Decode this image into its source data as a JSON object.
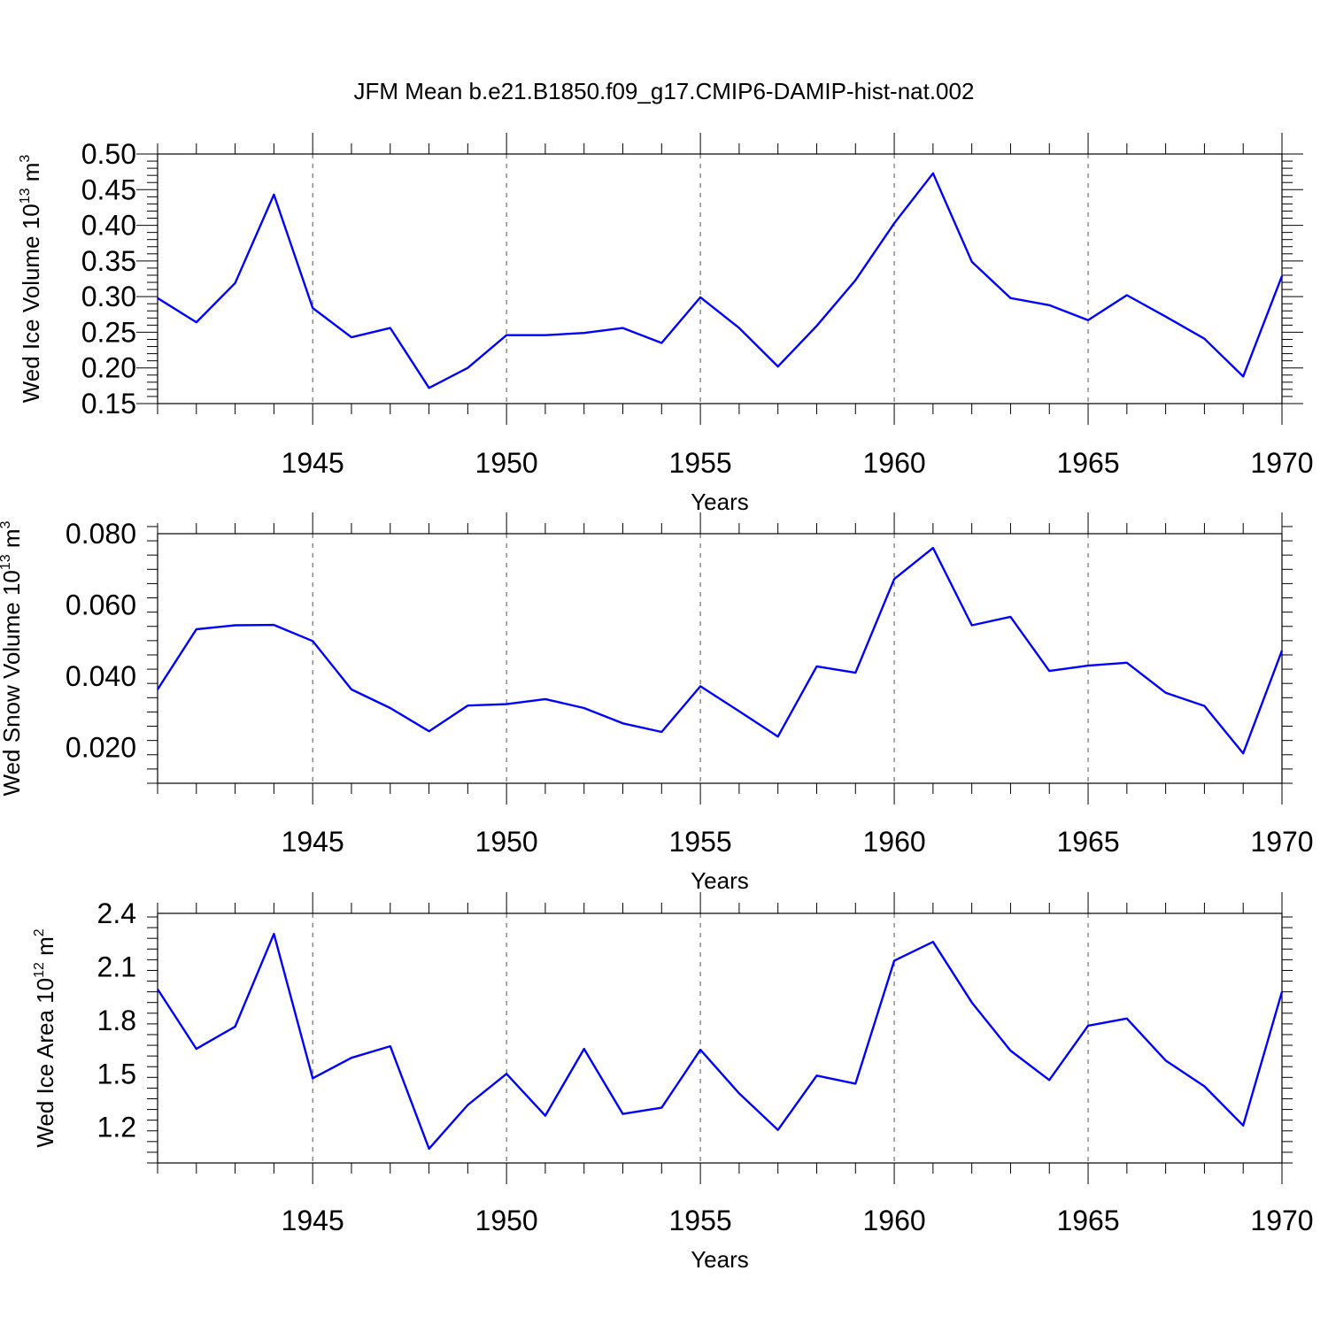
{
  "title": "JFM Mean b.e21.B1850.f09_g17.CMIP6-DAMIP-hist-nat.002",
  "colors": {
    "line": "#0000ff",
    "axis": "#000000",
    "grid": "#555555"
  },
  "chart_data": [
    {
      "type": "line",
      "ylabel": "Wed Ice Volume 10",
      "ylabel_sup": "13",
      "ylabel_unit": "m",
      "ylabel_unit_sup": "3",
      "xlabel": "Years",
      "xlim": [
        1941,
        1970
      ],
      "ylim": [
        0.15,
        0.5
      ],
      "xticks": [
        1945,
        1950,
        1955,
        1960,
        1965,
        1970
      ],
      "xtick_labels": [
        "1945",
        "1950",
        "1955",
        "1960",
        "1965",
        "1970"
      ],
      "yticks": [
        0.15,
        0.2,
        0.25,
        0.3,
        0.35,
        0.4,
        0.45,
        0.5
      ],
      "ytick_labels": [
        "0.15",
        "0.20",
        "0.25",
        "0.30",
        "0.35",
        "0.40",
        "0.45",
        "0.50"
      ],
      "grid": "dashed vertical at labeled years",
      "x": [
        1941,
        1942,
        1943,
        1944,
        1945,
        1946,
        1947,
        1948,
        1949,
        1950,
        1951,
        1952,
        1953,
        1954,
        1955,
        1956,
        1957,
        1958,
        1959,
        1960,
        1961,
        1962,
        1963,
        1964,
        1965,
        1966,
        1967,
        1968,
        1969,
        1970
      ],
      "values": [
        0.298,
        0.264,
        0.319,
        0.443,
        0.284,
        0.243,
        0.256,
        0.172,
        0.2,
        0.246,
        0.246,
        0.249,
        0.256,
        0.235,
        0.299,
        0.256,
        0.202,
        0.259,
        0.323,
        0.403,
        0.473,
        0.349,
        0.298,
        0.288,
        0.267,
        0.302,
        0.272,
        0.241,
        0.188,
        0.329
      ]
    },
    {
      "type": "line",
      "ylabel": "Wed Snow Volume 10",
      "ylabel_sup": "13",
      "ylabel_unit": "m",
      "ylabel_unit_sup": "3",
      "xlabel": "Years",
      "xlim": [
        1941,
        1970
      ],
      "ylim": [
        0.01,
        0.08
      ],
      "xticks": [
        1945,
        1950,
        1955,
        1960,
        1965,
        1970
      ],
      "xtick_labels": [
        "1945",
        "1950",
        "1955",
        "1960",
        "1965",
        "1970"
      ],
      "yticks": [
        0.02,
        0.04,
        0.06,
        0.08
      ],
      "ytick_labels": [
        "0.020",
        "0.040",
        "0.060",
        "0.080"
      ],
      "grid": "dashed vertical at labeled years",
      "x": [
        1941,
        1942,
        1943,
        1944,
        1945,
        1946,
        1947,
        1948,
        1949,
        1950,
        1951,
        1952,
        1953,
        1954,
        1955,
        1956,
        1957,
        1958,
        1959,
        1960,
        1961,
        1962,
        1963,
        1964,
        1965,
        1966,
        1967,
        1968,
        1969,
        1970
      ],
      "values": [
        0.0363,
        0.0532,
        0.0543,
        0.0544,
        0.0499,
        0.0363,
        0.0311,
        0.0246,
        0.0318,
        0.0322,
        0.0336,
        0.0311,
        0.0268,
        0.0244,
        0.0372,
        0.0302,
        0.0231,
        0.0428,
        0.041,
        0.0673,
        0.076,
        0.0543,
        0.0567,
        0.0415,
        0.043,
        0.0438,
        0.0354,
        0.0317,
        0.0184,
        0.0472
      ]
    },
    {
      "type": "line",
      "ylabel": "Wed Ice Area 10",
      "ylabel_sup": "12",
      "ylabel_unit": "m",
      "ylabel_unit_sup": "2",
      "xlabel": "Years",
      "xlim": [
        1941,
        1970
      ],
      "ylim": [
        1.0,
        2.4
      ],
      "xticks": [
        1945,
        1950,
        1955,
        1960,
        1965,
        1970
      ],
      "xtick_labels": [
        "1945",
        "1950",
        "1955",
        "1960",
        "1965",
        "1970"
      ],
      "yticks": [
        1.2,
        1.5,
        1.8,
        2.1,
        2.4
      ],
      "ytick_labels": [
        "1.2",
        "1.5",
        "1.8",
        "2.1",
        "2.4"
      ],
      "grid": "dashed vertical at labeled years",
      "x": [
        1941,
        1942,
        1943,
        1944,
        1945,
        1946,
        1947,
        1948,
        1949,
        1950,
        1951,
        1952,
        1953,
        1954,
        1955,
        1956,
        1957,
        1958,
        1959,
        1960,
        1961,
        1962,
        1963,
        1964,
        1965,
        1966,
        1967,
        1968,
        1969,
        1970
      ],
      "values": [
        1.975,
        1.64,
        1.765,
        2.285,
        1.475,
        1.59,
        1.655,
        1.08,
        1.325,
        1.5,
        1.265,
        1.64,
        1.275,
        1.31,
        1.635,
        1.39,
        1.185,
        1.49,
        1.445,
        2.135,
        2.24,
        1.9,
        1.63,
        1.465,
        1.77,
        1.81,
        1.575,
        1.43,
        1.21,
        1.96
      ]
    }
  ]
}
